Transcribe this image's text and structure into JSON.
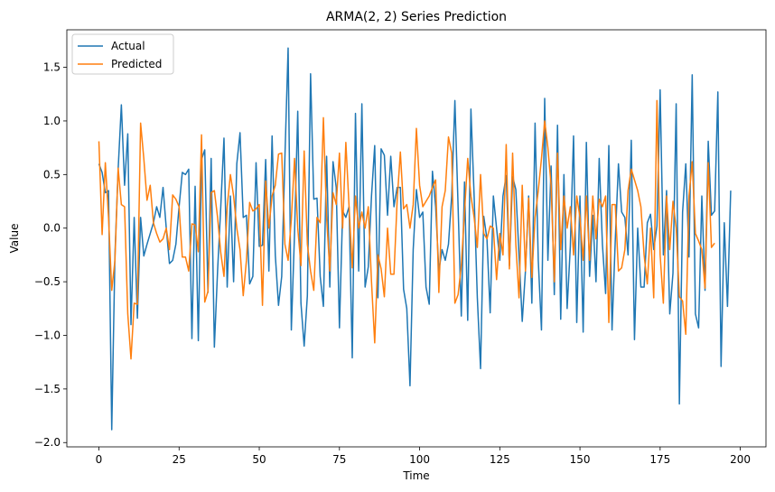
{
  "chart_data": {
    "type": "line",
    "title": "ARMA(2, 2) Series Prediction",
    "xlabel": "Time",
    "ylabel": "Value",
    "xlim": [
      -10,
      208
    ],
    "ylim": [
      -2.04,
      1.85
    ],
    "xticks": [
      0,
      25,
      50,
      75,
      100,
      125,
      150,
      175,
      200
    ],
    "yticks": [
      -2.0,
      -1.5,
      -1.0,
      -0.5,
      0.0,
      0.5,
      1.0,
      1.5
    ],
    "xtick_labels": [
      "0",
      "25",
      "50",
      "75",
      "100",
      "125",
      "150",
      "175",
      "200"
    ],
    "ytick_labels": [
      "−2.0",
      "−1.5",
      "−1.0",
      "−0.5",
      "0.0",
      "0.5",
      "1.0",
      "1.5"
    ],
    "grid": false,
    "legend_position": "top-left",
    "series": [
      {
        "name": "Actual",
        "color": "#1f77b4",
        "values": [
          0.6,
          0.52,
          0.33,
          0.35,
          -1.88,
          -0.25,
          0.55,
          1.15,
          0.4,
          0.88,
          -0.9,
          0.1,
          -0.84,
          0.1,
          -0.26,
          -0.15,
          -0.05,
          0.05,
          0.2,
          0.1,
          0.38,
          0.0,
          -0.33,
          -0.3,
          -0.15,
          0.2,
          0.52,
          0.5,
          0.55,
          -1.03,
          0.39,
          -1.05,
          0.64,
          0.73,
          -0.6,
          0.65,
          -1.11,
          -0.4,
          0.2,
          0.84,
          -0.55,
          0.3,
          -0.5,
          0.6,
          0.89,
          0.1,
          0.12,
          -0.52,
          -0.45,
          0.61,
          -0.17,
          -0.16,
          0.64,
          -0.4,
          0.86,
          -0.25,
          -0.72,
          -0.45,
          0.66,
          1.68,
          -0.95,
          -0.05,
          1.09,
          -0.7,
          -1.1,
          -0.63,
          1.44,
          0.27,
          0.28,
          -0.45,
          -0.73,
          0.67,
          -0.55,
          0.62,
          0.38,
          -0.93,
          0.16,
          0.1,
          0.2,
          -1.21,
          1.07,
          -0.4,
          1.16,
          -0.55,
          -0.36,
          0.3,
          0.77,
          -0.65,
          0.74,
          0.68,
          0.12,
          0.67,
          0.2,
          0.38,
          0.38,
          -0.57,
          -0.75,
          -1.47,
          -0.2,
          0.36,
          0.1,
          0.15,
          -0.55,
          -0.71,
          0.53,
          0.2,
          -0.4,
          -0.2,
          -0.3,
          -0.15,
          0.3,
          1.19,
          0.2,
          -0.82,
          0.43,
          -0.86,
          1.11,
          0.3,
          -0.65,
          -1.31,
          0.11,
          -0.1,
          -0.79,
          0.3,
          0.0,
          -0.3,
          0.3,
          0.49,
          -0.35,
          0.48,
          0.36,
          -0.25,
          -0.87,
          -0.4,
          0.3,
          -0.7,
          0.98,
          -0.3,
          -0.95,
          1.21,
          -0.3,
          0.58,
          -0.62,
          0.96,
          -0.85,
          0.5,
          -0.75,
          -0.17,
          0.86,
          -0.88,
          0.3,
          -0.97,
          0.8,
          -0.45,
          0.12,
          -0.5,
          0.65,
          -0.15,
          -0.61,
          0.77,
          -0.95,
          -0.12,
          0.6,
          0.15,
          0.1,
          -0.25,
          0.82,
          -1.04,
          0.0,
          -0.55,
          -0.55,
          0.05,
          0.13,
          -0.2,
          0.02,
          1.29,
          -0.25,
          0.35,
          -0.8,
          -0.42,
          1.16,
          -1.64,
          0.15,
          0.6,
          -0.27,
          1.43,
          -0.8,
          -0.93,
          0.3,
          -0.58,
          0.81,
          0.12,
          0.16,
          1.27,
          -1.29,
          0.05,
          -0.73,
          0.35
        ]
      },
      {
        "name": "Predicted",
        "color": "#ff7f0e",
        "values": [
          0.81,
          -0.06,
          0.61,
          0.1,
          -0.58,
          -0.3,
          0.56,
          0.22,
          0.2,
          -0.8,
          -1.22,
          -0.7,
          -0.71,
          0.98,
          0.65,
          0.26,
          0.4,
          0.05,
          -0.05,
          -0.13,
          -0.1,
          0.0,
          -0.2,
          0.31,
          0.27,
          0.2,
          -0.27,
          -0.27,
          -0.4,
          0.04,
          0.03,
          -0.22,
          0.87,
          -0.69,
          -0.59,
          0.33,
          0.35,
          0.1,
          -0.23,
          -0.45,
          0.2,
          0.5,
          0.3,
          0.0,
          -0.2,
          -0.63,
          -0.3,
          0.24,
          0.16,
          0.18,
          0.22,
          -0.72,
          0.44,
          0.0,
          0.3,
          0.4,
          0.69,
          0.7,
          -0.15,
          -0.3,
          0.08,
          0.65,
          0.0,
          -0.35,
          0.72,
          -0.15,
          -0.4,
          -0.58,
          0.1,
          0.05,
          1.03,
          0.1,
          -0.4,
          0.33,
          0.22,
          0.7,
          0.0,
          0.8,
          0.2,
          -0.37,
          0.3,
          0.0,
          0.15,
          0.0,
          0.2,
          -0.5,
          -1.07,
          -0.25,
          -0.38,
          -0.64,
          0.0,
          -0.43,
          -0.43,
          0.26,
          0.71,
          0.18,
          0.22,
          0.0,
          0.22,
          0.93,
          0.4,
          0.2,
          0.25,
          0.3,
          0.38,
          0.45,
          -0.6,
          0.2,
          0.35,
          0.85,
          0.7,
          -0.7,
          -0.62,
          -0.35,
          0.15,
          0.65,
          0.3,
          0.1,
          -0.18,
          0.5,
          -0.05,
          -0.1,
          0.02,
          0.0,
          -0.48,
          -0.05,
          -0.25,
          0.78,
          -0.38,
          0.7,
          -0.15,
          -0.65,
          0.4,
          -0.4,
          0.28,
          -0.46,
          0.1,
          0.35,
          0.65,
          1.0,
          0.75,
          0.4,
          -0.5,
          0.7,
          -0.2,
          0.3,
          0.0,
          0.2,
          -0.25,
          0.3,
          0.1,
          -0.3,
          0.3,
          -0.3,
          0.3,
          -0.1,
          0.27,
          0.2,
          0.3,
          -0.88,
          0.22,
          0.22,
          -0.4,
          -0.37,
          -0.2,
          0.35,
          0.55,
          0.45,
          0.35,
          0.2,
          -0.25,
          -0.52,
          0.0,
          -0.65,
          1.19,
          -0.25,
          -0.7,
          0.3,
          -0.2,
          0.25,
          0.0,
          -0.64,
          -0.68,
          -0.99,
          0.3,
          0.62,
          -0.05,
          -0.12,
          -0.2,
          -0.56,
          0.61,
          -0.18,
          -0.14
        ]
      }
    ]
  }
}
